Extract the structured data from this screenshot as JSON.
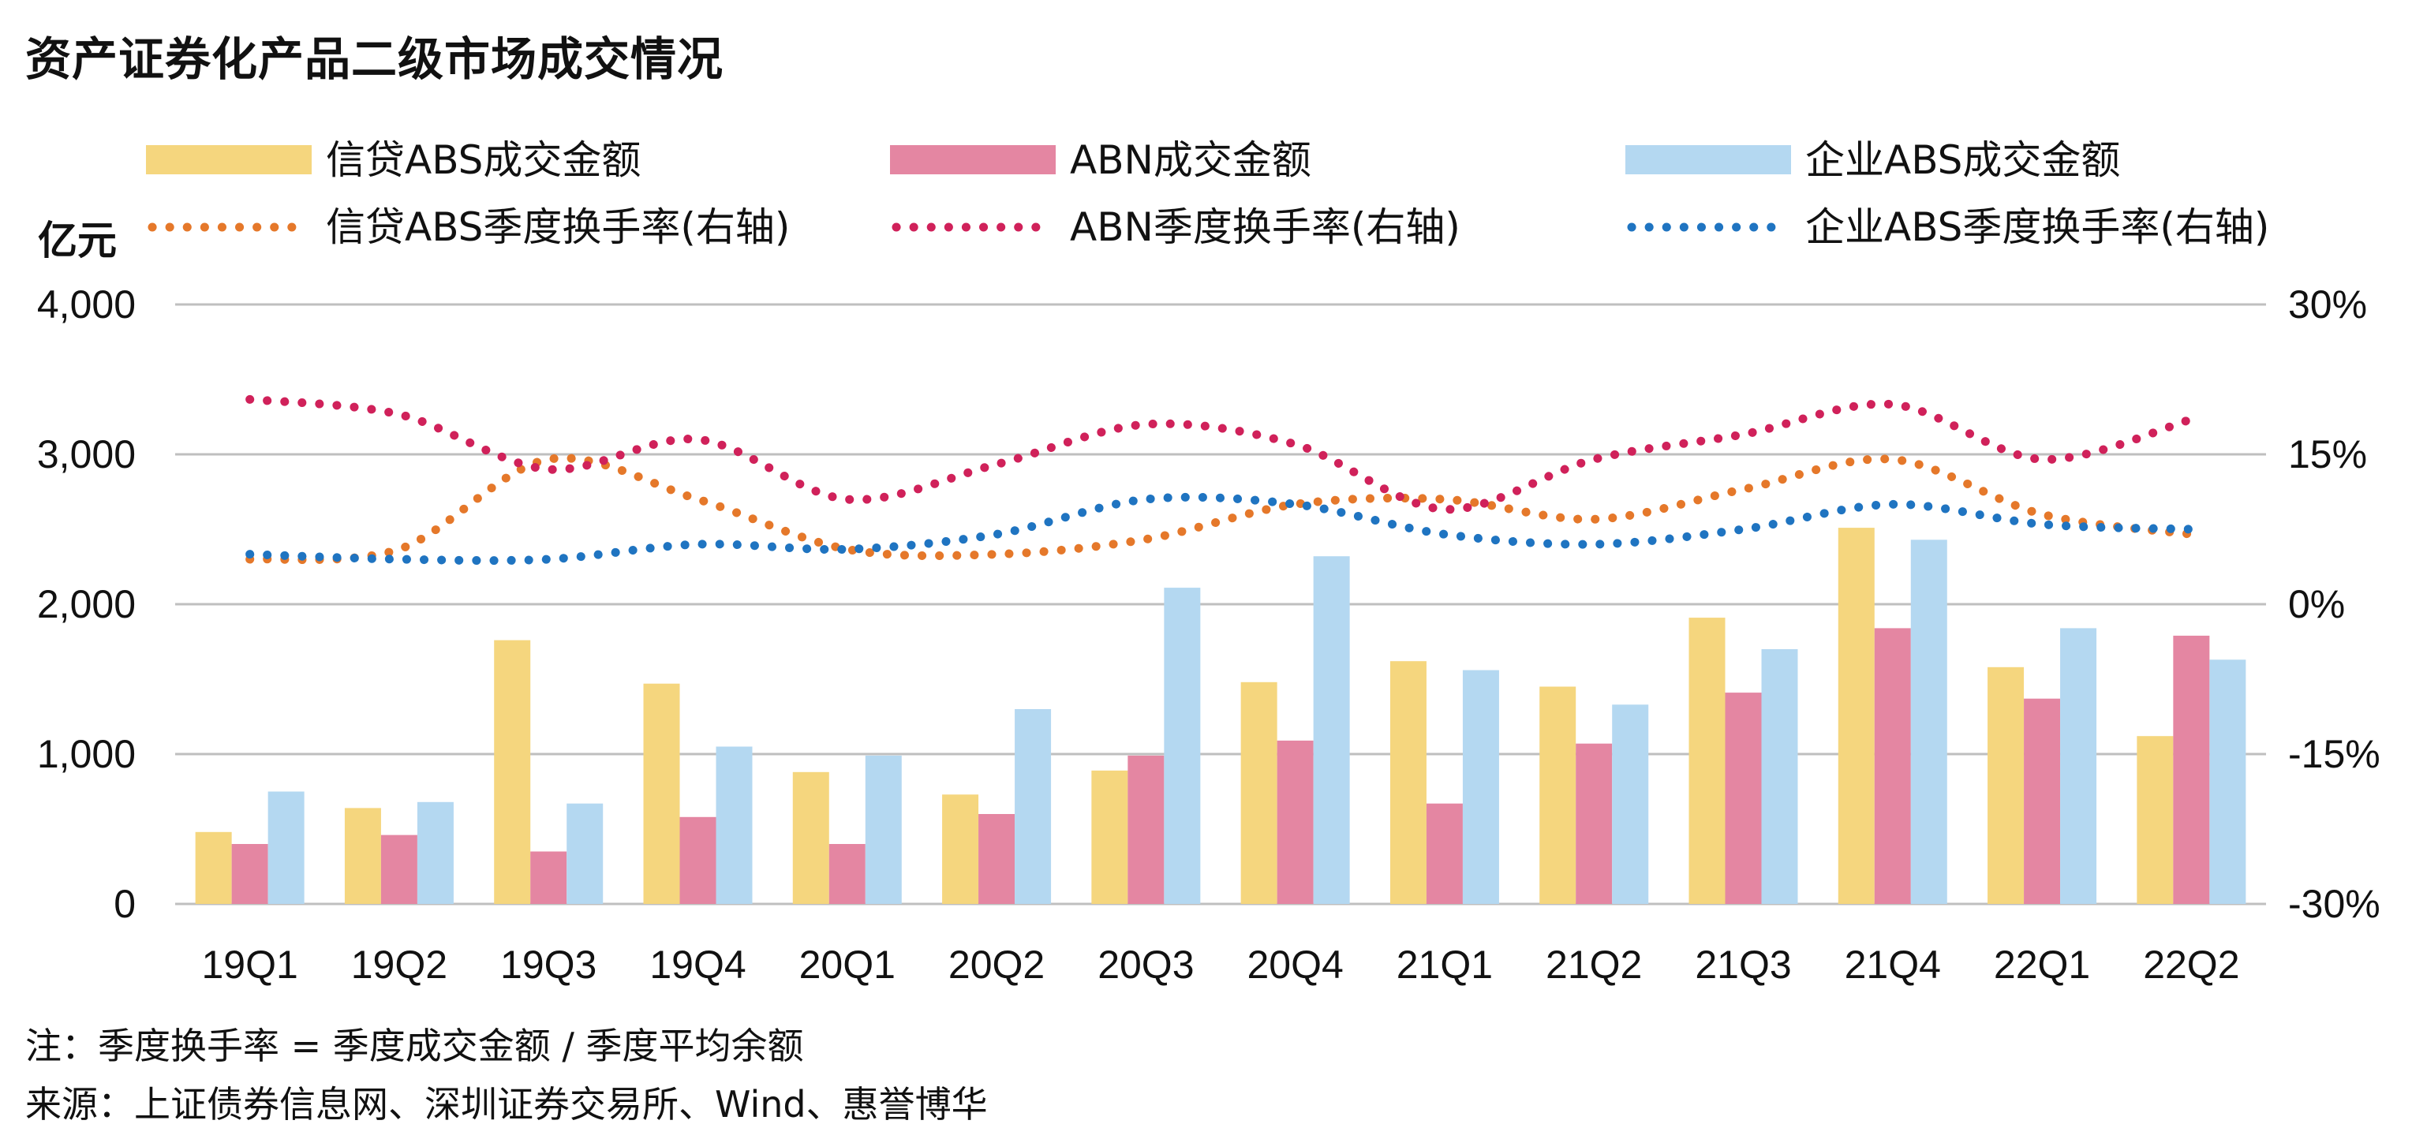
{
  "title": "资产证券化产品二级市场成交情况",
  "notes": {
    "formula": "注：季度换手率 = 季度成交金额 / 季度平均余额",
    "source": "来源：上证债券信息网、深圳证券交易所、Wind、惠誉博华"
  },
  "chart_data": {
    "type": "bar",
    "categories": [
      "19Q1",
      "19Q2",
      "19Q3",
      "19Q4",
      "20Q1",
      "20Q2",
      "20Q3",
      "20Q4",
      "21Q1",
      "21Q2",
      "21Q3",
      "21Q4",
      "22Q1",
      "22Q2"
    ],
    "ylabel": "亿元",
    "ylim": [
      0,
      4000
    ],
    "yticks": [
      "0",
      "1,000",
      "2,000",
      "3,000",
      "4,000"
    ],
    "y2lim": [
      -30,
      30
    ],
    "y2ticks": [
      "-30%",
      "-15%",
      "0%",
      "15%",
      "30%"
    ],
    "grid": true,
    "legend_position": "top",
    "series": [
      {
        "name": "信贷ABS成交金额",
        "kind": "bar",
        "axis": "left",
        "color": "#F5D67E",
        "values": [
          480,
          640,
          1760,
          1470,
          880,
          730,
          890,
          1480,
          1620,
          1450,
          1910,
          2510,
          1580,
          1120
        ]
      },
      {
        "name": "ABN成交金额",
        "kind": "bar",
        "axis": "left",
        "color": "#E486A2",
        "values": [
          400,
          460,
          350,
          580,
          400,
          600,
          990,
          1090,
          670,
          1070,
          1410,
          1840,
          1370,
          1790
        ]
      },
      {
        "name": "企业ABS成交金额",
        "kind": "bar",
        "axis": "left",
        "color": "#B4D8F1",
        "values": [
          750,
          680,
          670,
          1050,
          990,
          1300,
          2110,
          2320,
          1560,
          1330,
          1700,
          2430,
          1840,
          1630
        ]
      },
      {
        "name": "信贷ABS季度换手率(右轴)",
        "kind": "line",
        "axis": "right",
        "color": "#E5782A",
        "values": [
          4.5,
          5.5,
          14.5,
          10.5,
          5.5,
          5,
          6.5,
          10,
          10.5,
          8.5,
          11.5,
          14.5,
          9,
          7
        ]
      },
      {
        "name": "ABN季度换手率(右轴)",
        "kind": "line",
        "axis": "right",
        "color": "#D0215A",
        "values": [
          20.5,
          19,
          13.5,
          16.5,
          10.5,
          14,
          18,
          16,
          9.5,
          14.5,
          17,
          20,
          14.5,
          18.5
        ]
      },
      {
        "name": "企业ABS季度换手率(右轴)",
        "kind": "line",
        "axis": "right",
        "color": "#1F74C1",
        "values": [
          5,
          4.5,
          4.5,
          6,
          5.5,
          7,
          10.5,
          10,
          7,
          6,
          7.5,
          10,
          8,
          7.5
        ]
      }
    ]
  }
}
